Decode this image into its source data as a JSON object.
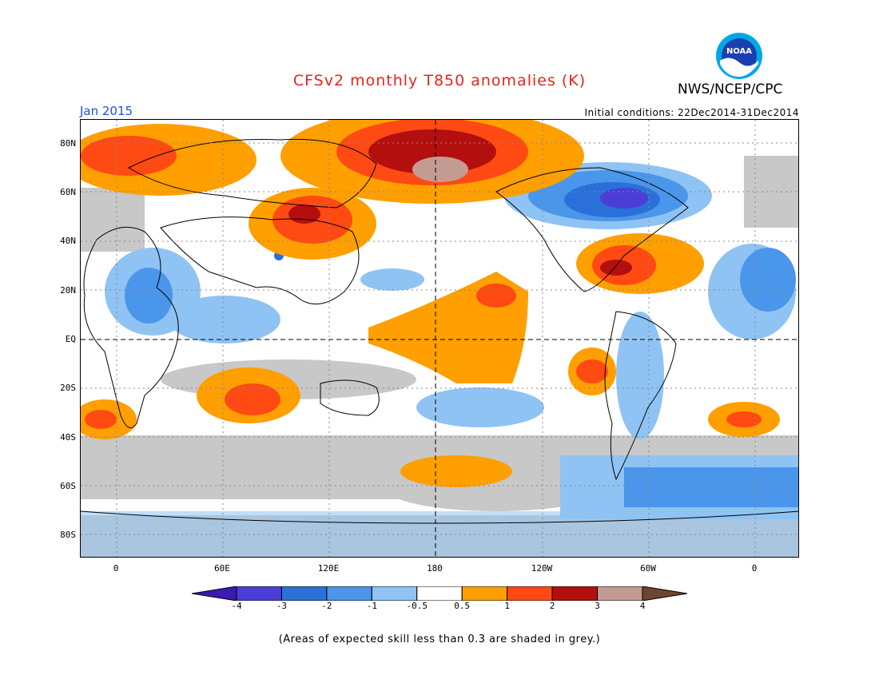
{
  "header": {
    "title": "CFSv2 monthly T850 anomalies (K)",
    "agency": "NWS/NCEP/CPC",
    "logo_text": "NOAA",
    "month": "Jan 2015",
    "initial_conditions": "Initial conditions: 22Dec2014-31Dec2014"
  },
  "axes": {
    "y_labels": [
      "80N",
      "60N",
      "40N",
      "20N",
      "EQ",
      "20S",
      "40S",
      "60S",
      "80S"
    ],
    "x_labels": [
      "0",
      "60E",
      "120E",
      "180",
      "120W",
      "60W",
      "0"
    ]
  },
  "colorbar": {
    "labels": [
      "-4",
      "-3",
      "-2",
      "-1",
      "-0.5",
      "0.5",
      "1",
      "2",
      "3",
      "4"
    ],
    "colors": [
      "#3a1ab0",
      "#4a3ed6",
      "#2a70d8",
      "#4a96ea",
      "#8fc3f3",
      "#ffffff",
      "#ff9f00",
      "#ff4a13",
      "#b40f0f",
      "#c39b93",
      "#6e4530"
    ]
  },
  "footnote": "(Areas of expected skill less than 0.3 are shaded in grey.)",
  "colors": {
    "title": "#e8231e",
    "month": "#1f4fe0",
    "skill_grey": "#c8c8c8"
  }
}
